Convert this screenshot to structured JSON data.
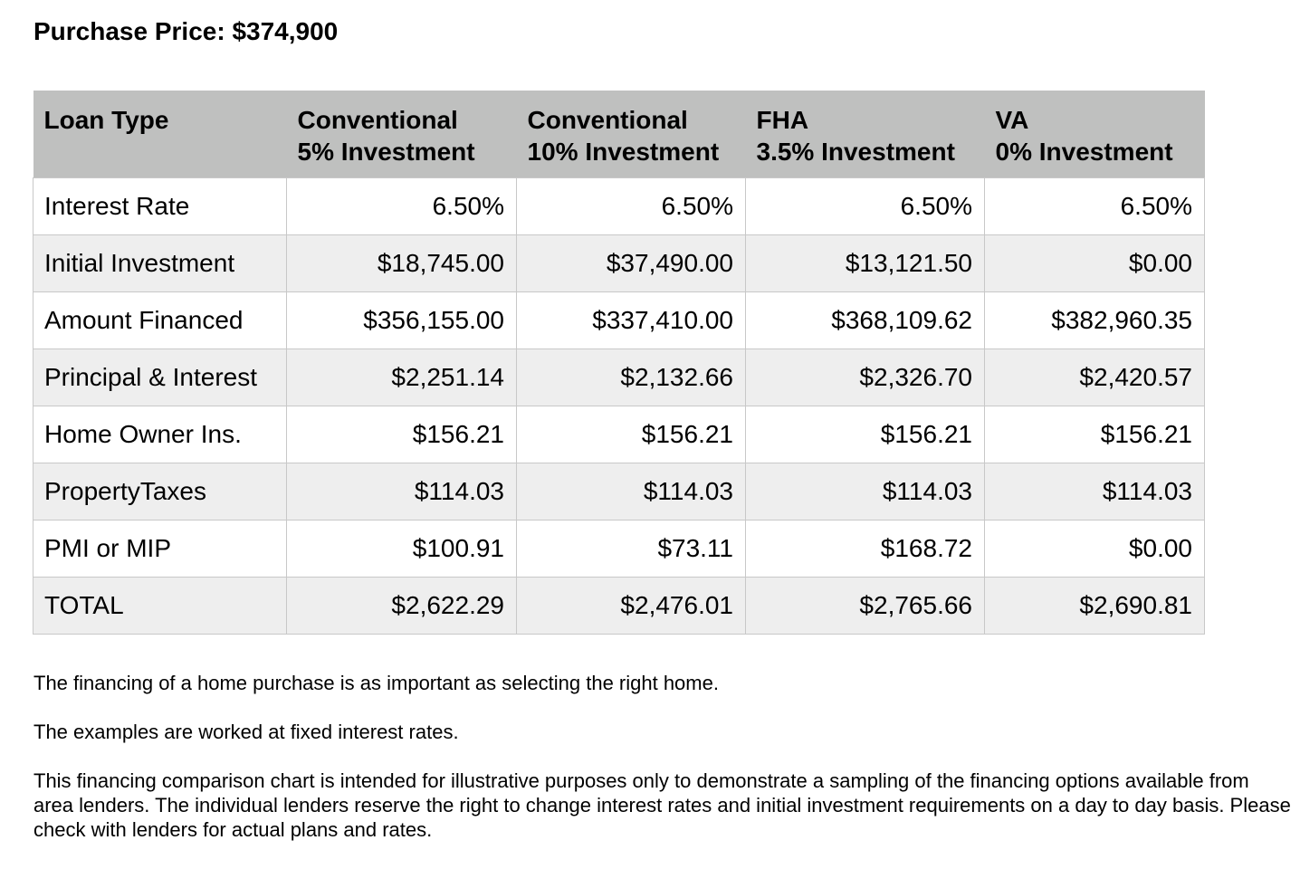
{
  "title": "Purchase Price: $374,900",
  "table": {
    "headers": [
      {
        "line1": "Loan Type",
        "line2": ""
      },
      {
        "line1": "Conventional",
        "line2": "5% Investment"
      },
      {
        "line1": "Conventional",
        "line2": "10% Investment"
      },
      {
        "line1": "FHA",
        "line2": "3.5% Investment"
      },
      {
        "line1": "VA",
        "line2": "0% Investment"
      }
    ],
    "rows": [
      {
        "label": "Interest Rate",
        "values": [
          "6.50%",
          "6.50%",
          "6.50%",
          "6.50%"
        ]
      },
      {
        "label": "Initial Investment",
        "values": [
          "$18,745.00",
          "$37,490.00",
          "$13,121.50",
          "$0.00"
        ]
      },
      {
        "label": "Amount Financed",
        "values": [
          "$356,155.00",
          "$337,410.00",
          "$368,109.62",
          "$382,960.35"
        ]
      },
      {
        "label": "Principal & Interest",
        "values": [
          "$2,251.14",
          "$2,132.66",
          "$2,326.70",
          "$2,420.57"
        ]
      },
      {
        "label": "Home Owner Ins.",
        "values": [
          "$156.21",
          "$156.21",
          "$156.21",
          "$156.21"
        ]
      },
      {
        "label": "PropertyTaxes",
        "values": [
          "$114.03",
          "$114.03",
          "$114.03",
          "$114.03"
        ]
      },
      {
        "label": "PMI or MIP",
        "values": [
          "$100.91",
          "$73.11",
          "$168.72",
          "$0.00"
        ]
      },
      {
        "label": "TOTAL",
        "values": [
          "$2,622.29",
          "$2,476.01",
          "$2,765.66",
          "$2,690.81"
        ]
      }
    ]
  },
  "notes": [
    "The financing of a home purchase is as important as selecting the right home.",
    "The examples are worked at fixed interest rates.",
    "This financing comparison chart is intended for illustrative purposes only to demonstrate a sampling of the financing options available from area lenders. The individual lenders reserve the right to change interest rates and initial investment requirements on a day to day basis. Please check with lenders for actual plans and rates."
  ],
  "colors": {
    "header_bg": "#bfc0bf",
    "alt_row_bg": "#eeeeee",
    "border": "#c8c8c8"
  }
}
